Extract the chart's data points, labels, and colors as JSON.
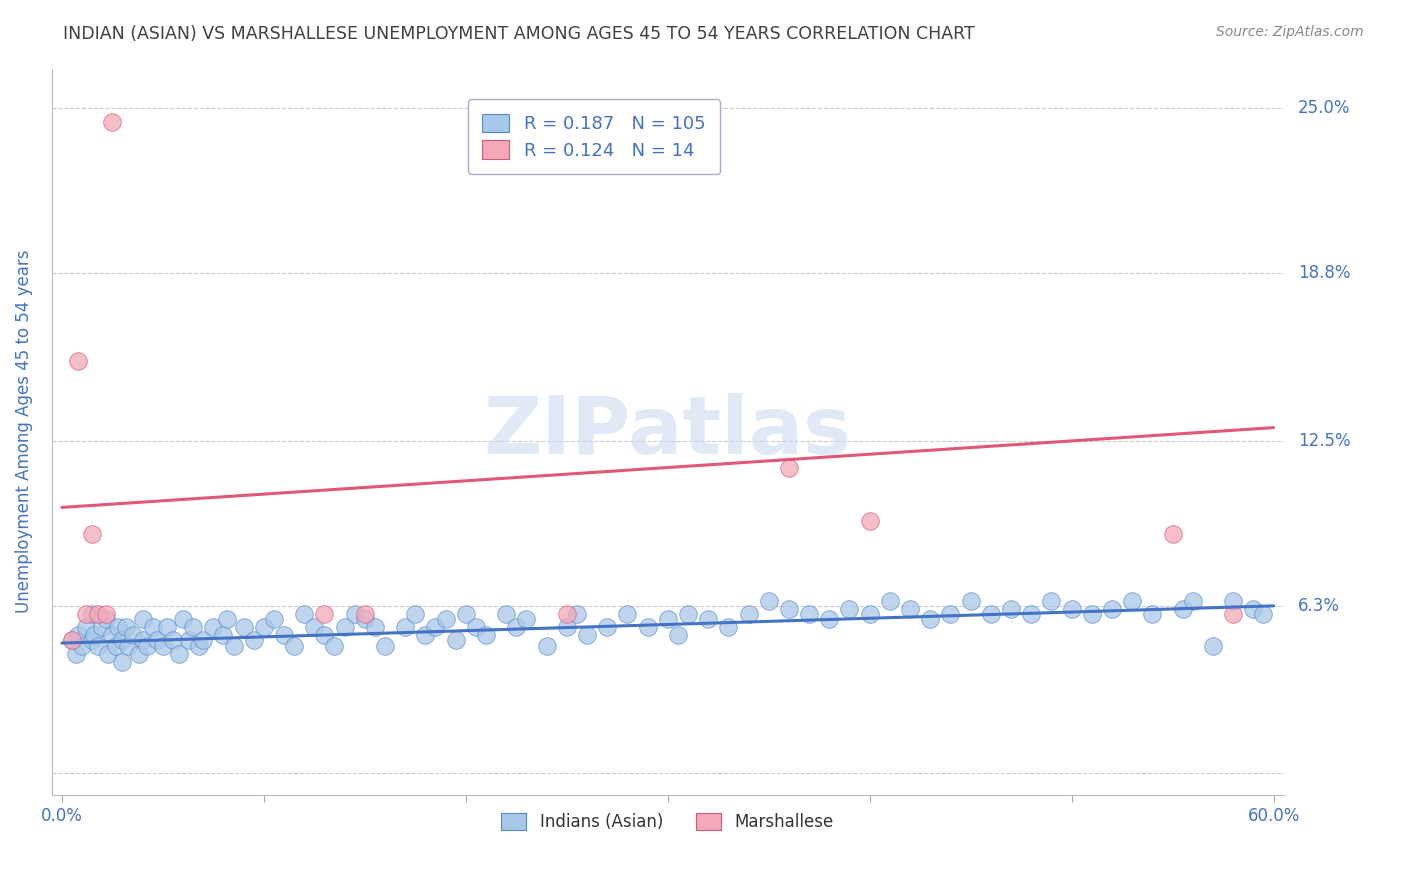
{
  "title": "INDIAN (ASIAN) VS MARSHALLESE UNEMPLOYMENT AMONG AGES 45 TO 54 YEARS CORRELATION CHART",
  "source": "Source: ZipAtlas.com",
  "ylabel": "Unemployment Among Ages 45 to 54 years",
  "xlim": [
    0.0,
    0.6
  ],
  "ylim": [
    0.0,
    0.265
  ],
  "yticks": [
    0.0,
    0.063,
    0.125,
    0.188,
    0.25
  ],
  "ytick_labels": [
    "",
    "6.3%",
    "12.5%",
    "18.8%",
    "25.0%"
  ],
  "xtick_labels_shown": [
    "0.0%",
    "60.0%"
  ],
  "xticks_shown": [
    0.0,
    0.6
  ],
  "xticks_minor": [
    0.1,
    0.2,
    0.3,
    0.4,
    0.5
  ],
  "indian_R": 0.187,
  "indian_N": 105,
  "marshallese_R": 0.124,
  "marshallese_N": 14,
  "indian_color": "#a8c8e8",
  "indian_edge_color": "#5588cc",
  "marshallese_color": "#f4a8b8",
  "marshallese_edge_color": "#d05878",
  "indian_line_color": "#4472c4",
  "marshallese_line_color": "#e05878",
  "title_color": "#404040",
  "axis_label_color": "#4472c4",
  "tick_label_color": "#4472c4",
  "legend_text_color": "#4472c4",
  "grid_color": "#cccccc",
  "background_color": "#ffffff",
  "indian_x": [
    0.005,
    0.007,
    0.008,
    0.01,
    0.012,
    0.015,
    0.015,
    0.016,
    0.018,
    0.02,
    0.022,
    0.023,
    0.025,
    0.027,
    0.028,
    0.03,
    0.03,
    0.032,
    0.033,
    0.035,
    0.038,
    0.04,
    0.04,
    0.042,
    0.045,
    0.047,
    0.05,
    0.052,
    0.055,
    0.058,
    0.06,
    0.063,
    0.065,
    0.068,
    0.07,
    0.075,
    0.08,
    0.082,
    0.085,
    0.09,
    0.095,
    0.1,
    0.105,
    0.11,
    0.115,
    0.12,
    0.125,
    0.13,
    0.135,
    0.14,
    0.145,
    0.15,
    0.155,
    0.16,
    0.17,
    0.175,
    0.18,
    0.185,
    0.19,
    0.195,
    0.2,
    0.205,
    0.21,
    0.22,
    0.225,
    0.23,
    0.24,
    0.25,
    0.255,
    0.26,
    0.27,
    0.28,
    0.29,
    0.3,
    0.305,
    0.31,
    0.32,
    0.33,
    0.34,
    0.35,
    0.36,
    0.37,
    0.38,
    0.39,
    0.4,
    0.41,
    0.42,
    0.43,
    0.44,
    0.45,
    0.46,
    0.47,
    0.48,
    0.49,
    0.5,
    0.51,
    0.52,
    0.53,
    0.54,
    0.555,
    0.56,
    0.57,
    0.58,
    0.59,
    0.595
  ],
  "indian_y": [
    0.05,
    0.045,
    0.052,
    0.048,
    0.055,
    0.05,
    0.06,
    0.052,
    0.048,
    0.055,
    0.058,
    0.045,
    0.052,
    0.048,
    0.055,
    0.05,
    0.042,
    0.055,
    0.048,
    0.052,
    0.045,
    0.05,
    0.058,
    0.048,
    0.055,
    0.05,
    0.048,
    0.055,
    0.05,
    0.045,
    0.058,
    0.05,
    0.055,
    0.048,
    0.05,
    0.055,
    0.052,
    0.058,
    0.048,
    0.055,
    0.05,
    0.055,
    0.058,
    0.052,
    0.048,
    0.06,
    0.055,
    0.052,
    0.048,
    0.055,
    0.06,
    0.058,
    0.055,
    0.048,
    0.055,
    0.06,
    0.052,
    0.055,
    0.058,
    0.05,
    0.06,
    0.055,
    0.052,
    0.06,
    0.055,
    0.058,
    0.048,
    0.055,
    0.06,
    0.052,
    0.055,
    0.06,
    0.055,
    0.058,
    0.052,
    0.06,
    0.058,
    0.055,
    0.06,
    0.065,
    0.062,
    0.06,
    0.058,
    0.062,
    0.06,
    0.065,
    0.062,
    0.058,
    0.06,
    0.065,
    0.06,
    0.062,
    0.06,
    0.065,
    0.062,
    0.06,
    0.062,
    0.065,
    0.06,
    0.062,
    0.065,
    0.048,
    0.065,
    0.062,
    0.06
  ],
  "marshallese_x": [
    0.005,
    0.008,
    0.012,
    0.015,
    0.018,
    0.022,
    0.025,
    0.13,
    0.15,
    0.25,
    0.36,
    0.4,
    0.55,
    0.58
  ],
  "marshallese_y": [
    0.05,
    0.155,
    0.06,
    0.09,
    0.06,
    0.06,
    0.245,
    0.06,
    0.06,
    0.06,
    0.115,
    0.095,
    0.09,
    0.06
  ],
  "indian_trend_x": [
    0.0,
    0.6
  ],
  "indian_trend_y_start": 0.049,
  "indian_trend_y_end": 0.063,
  "marshallese_trend_x": [
    0.0,
    0.6
  ],
  "marshallese_trend_y_start": 0.1,
  "marshallese_trend_y_end": 0.13
}
